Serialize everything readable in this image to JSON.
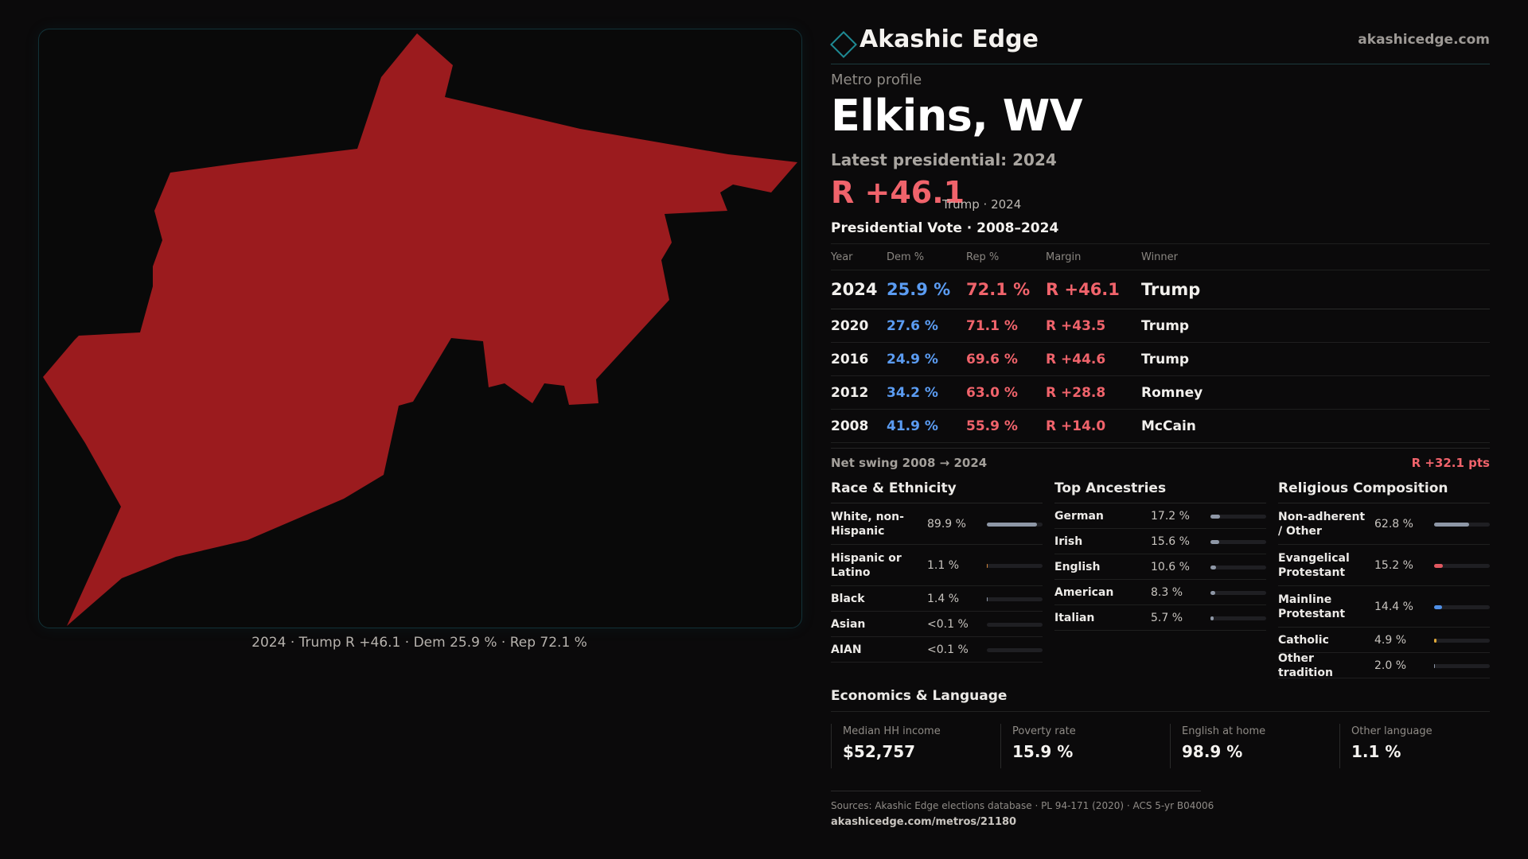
{
  "brand": {
    "name": "Akashic Edge",
    "url": "akashicedge.com"
  },
  "profile": {
    "kicker": "Metro profile",
    "title": "Elkins, WV",
    "latest_label": "Latest presidential: 2024",
    "latest_margin": "R +46.1",
    "latest_sub": "Trump · 2024"
  },
  "map": {
    "fill_color": "#9b1b1e",
    "caption": "2024 · Trump R +46.1 · Dem 25.9 % · Rep 72.1 %"
  },
  "vote_table": {
    "title": "Presidential Vote · 2008–2024",
    "headers": [
      "Year",
      "Dem %",
      "Rep %",
      "Margin",
      "Winner"
    ],
    "rows": [
      {
        "year": "2024",
        "dem": "25.9 %",
        "rep": "72.1 %",
        "margin": "R +46.1",
        "winner": "Trump"
      },
      {
        "year": "2020",
        "dem": "27.6 %",
        "rep": "71.1 %",
        "margin": "R +43.5",
        "winner": "Trump"
      },
      {
        "year": "2016",
        "dem": "24.9 %",
        "rep": "69.6 %",
        "margin": "R +44.6",
        "winner": "Trump"
      },
      {
        "year": "2012",
        "dem": "34.2 %",
        "rep": "63.0 %",
        "margin": "R +28.8",
        "winner": "Romney"
      },
      {
        "year": "2008",
        "dem": "41.9 %",
        "rep": "55.9 %",
        "margin": "R +14.0",
        "winner": "McCain"
      }
    ]
  },
  "swing": {
    "label": "Net swing 2008 → 2024",
    "value": "R +32.1 pts"
  },
  "race": {
    "title": "Race & Ethnicity",
    "rows": [
      {
        "label": "White, non-Hispanic",
        "value": "89.9 %",
        "fraction": 0.899,
        "color": "#8e97a6"
      },
      {
        "label": "Hispanic or Latino",
        "value": "1.1 %",
        "fraction": 0.011,
        "color": "#d0843a"
      },
      {
        "label": "Black",
        "value": "1.4 %",
        "fraction": 0.014,
        "color": "#8e97a6"
      },
      {
        "label": "Asian",
        "value": "<0.1 %",
        "fraction": 0.0,
        "color": "#8e97a6"
      },
      {
        "label": "AIAN",
        "value": "<0.1 %",
        "fraction": 0.0,
        "color": "#8e97a6"
      }
    ]
  },
  "ancestry": {
    "title": "Top Ancestries",
    "rows": [
      {
        "label": "German",
        "value": "17.2 %",
        "fraction": 0.172,
        "color": "#8e97a6"
      },
      {
        "label": "Irish",
        "value": "15.6 %",
        "fraction": 0.156,
        "color": "#8e97a6"
      },
      {
        "label": "English",
        "value": "10.6 %",
        "fraction": 0.106,
        "color": "#8e97a6"
      },
      {
        "label": "American",
        "value": "8.3 %",
        "fraction": 0.083,
        "color": "#8e97a6"
      },
      {
        "label": "Italian",
        "value": "5.7 %",
        "fraction": 0.057,
        "color": "#8e97a6"
      }
    ]
  },
  "religion": {
    "title": "Religious Composition",
    "rows": [
      {
        "label": "Non-adherent / Other",
        "value": "62.8 %",
        "fraction": 0.628,
        "color": "#8e97a6"
      },
      {
        "label": "Evangelical Protestant",
        "value": "15.2 %",
        "fraction": 0.152,
        "color": "#e0575f"
      },
      {
        "label": "Mainline Protestant",
        "value": "14.4 %",
        "fraction": 0.144,
        "color": "#4f8fe6"
      },
      {
        "label": "Catholic",
        "value": "4.9 %",
        "fraction": 0.049,
        "color": "#e0a93a"
      },
      {
        "label": "Other tradition",
        "value": "2.0 %",
        "fraction": 0.02,
        "color": "#8e97a6"
      }
    ]
  },
  "economics": {
    "title": "Economics & Language",
    "cards": [
      {
        "label": "Median HH income",
        "value": "$52,757"
      },
      {
        "label": "Poverty rate",
        "value": "15.9 %"
      },
      {
        "label": "English at home",
        "value": "98.9 %"
      },
      {
        "label": "Other language",
        "value": "1.1 %"
      }
    ]
  },
  "footer": {
    "sources": "Sources: Akashic Edge elections database · PL 94-171 (2020) · ACS 5-yr B04006",
    "url": "akashicedge.com/metros/21180"
  }
}
